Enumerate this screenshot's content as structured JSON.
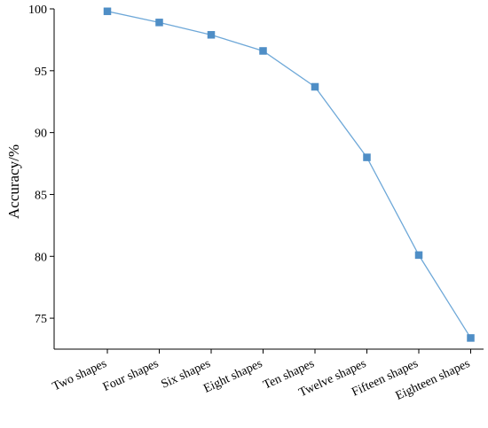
{
  "chart_data": {
    "type": "line",
    "categories": [
      "Two shapes",
      "Four shapes",
      "Six shapes",
      "Eight shapes",
      "Ten shapes",
      "Twelve shapes",
      "Fifteen shapes",
      "Eighteen shapes"
    ],
    "series": [
      {
        "values": [
          99.8,
          98.9,
          97.9,
          96.6,
          93.7,
          88.0,
          80.1,
          73.4
        ]
      }
    ],
    "xlabel": "",
    "ylabel": "Accuracy/%",
    "ylim": [
      72.5,
      100
    ],
    "yticks": [
      75,
      80,
      85,
      90,
      95,
      100
    ],
    "grid": false,
    "legend": "none",
    "line_color": "#6ea8d8",
    "marker_color": "#4f8ec6",
    "marker": "square"
  }
}
